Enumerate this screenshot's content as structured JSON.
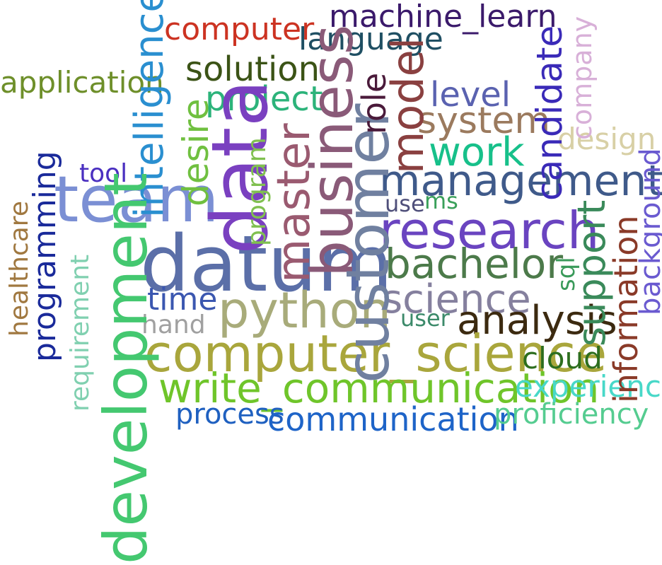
{
  "words": [
    {
      "text": "machine_learn",
      "color": "#3b1a6b"
    },
    {
      "text": "computer",
      "color": "#cc3322"
    },
    {
      "text": "language",
      "color": "#1f4f63"
    },
    {
      "text": "application",
      "color": "#6e8f2a"
    },
    {
      "text": "solution",
      "color": "#3b5316"
    },
    {
      "text": "project",
      "color": "#2cb37a"
    },
    {
      "text": "level",
      "color": "#5a62b0"
    },
    {
      "text": "system",
      "color": "#9b7a5e"
    },
    {
      "text": "work",
      "color": "#17c08a"
    },
    {
      "text": "design",
      "color": "#d8d0a6"
    },
    {
      "text": "management",
      "color": "#3f5a8a"
    },
    {
      "text": "tool",
      "color": "#4a2fc0"
    },
    {
      "text": "team",
      "color": "#7b8fd4"
    },
    {
      "text": "use",
      "color": "#4f4f7a"
    },
    {
      "text": "ms",
      "color": "#3aa05a"
    },
    {
      "text": "research",
      "color": "#6a44c0"
    },
    {
      "text": "datum",
      "color": "#5b6fa8"
    },
    {
      "text": "bachelor",
      "color": "#4c7a4a"
    },
    {
      "text": "science",
      "color": "#85809e"
    },
    {
      "text": "time",
      "color": "#3b57b0"
    },
    {
      "text": "python",
      "color": "#a8ab7a"
    },
    {
      "text": "hand",
      "color": "#a0a0a0"
    },
    {
      "text": "user",
      "color": "#3c8a6a"
    },
    {
      "text": "analysis",
      "color": "#3c2a10"
    },
    {
      "text": "computer_science",
      "color": "#a9a63c"
    },
    {
      "text": "cloud",
      "color": "#2d6e1e"
    },
    {
      "text": "write_communication",
      "color": "#6fc52a"
    },
    {
      "text": "experience",
      "color": "#48d8c8"
    },
    {
      "text": "process",
      "color": "#1f60c0"
    },
    {
      "text": "communication",
      "color": "#1e64c8"
    },
    {
      "text": "proficiency",
      "color": "#55cc90"
    },
    {
      "text": "intelligence",
      "color": "#2a8fd0"
    },
    {
      "text": "desire",
      "color": "#70c040"
    },
    {
      "text": "data",
      "color": "#7a40c0"
    },
    {
      "text": "program",
      "color": "#80c050"
    },
    {
      "text": "master",
      "color": "#9a5a70"
    },
    {
      "text": "business",
      "color": "#8a5a78"
    },
    {
      "text": "customer",
      "color": "#7080a0"
    },
    {
      "text": "role",
      "color": "#4a1a3a"
    },
    {
      "text": "model",
      "color": "#8a4040"
    },
    {
      "text": "candidate",
      "color": "#3a2ab8"
    },
    {
      "text": "company",
      "color": "#d8b0d8"
    },
    {
      "text": "healthcare",
      "color": "#a07840"
    },
    {
      "text": "programming",
      "color": "#1a2a9a"
    },
    {
      "text": "requirement",
      "color": "#80d0b0"
    },
    {
      "text": "development",
      "color": "#44c870"
    },
    {
      "text": "sql",
      "color": "#3a9a5a"
    },
    {
      "text": "support",
      "color": "#3a8a5a"
    },
    {
      "text": "information",
      "color": "#8a3a28"
    },
    {
      "text": "background",
      "color": "#6a5ad0"
    }
  ]
}
